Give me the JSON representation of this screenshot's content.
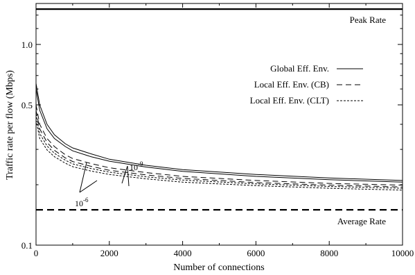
{
  "chart_data": {
    "type": "line",
    "title": "",
    "xlabel": "Number of connections",
    "ylabel": "Traffic rate per flow (Mbps)",
    "xlim": [
      0,
      10000
    ],
    "ylim": [
      0.1,
      1.6
    ],
    "yscale": "log",
    "grid": false,
    "legend_position": "upper-right",
    "x_ticks": [
      0,
      2000,
      4000,
      6000,
      8000,
      10000
    ],
    "x_tick_labels": [
      "0",
      "2000",
      "4000",
      "6000",
      "8000",
      "10000"
    ],
    "y_ticks": [
      0.1,
      0.5,
      1.0
    ],
    "y_tick_labels": [
      "0.1",
      "0.5",
      "1.0"
    ],
    "legend": [
      {
        "label": "Global Eff. Env.",
        "style": "solid"
      },
      {
        "label": "Local Eff. Env. (CB)",
        "style": "dashed"
      },
      {
        "label": "Local Eff. Env. (CLT)",
        "style": "dotted"
      }
    ],
    "reference_lines": [
      {
        "label": "Peak Rate",
        "y": 1.5,
        "style": "solid"
      },
      {
        "label": "Average Rate",
        "y": 0.15,
        "style": "dashed"
      }
    ],
    "annotations": [
      {
        "base": "10",
        "exponent": "-9"
      },
      {
        "base": "10",
        "exponent": "-6"
      }
    ],
    "series": [
      {
        "style": "solid",
        "x": [
          0,
          100,
          300,
          500,
          800,
          1000,
          1500,
          2000,
          3000,
          4000,
          6000,
          8000,
          10000
        ],
        "y": [
          0.64,
          0.5,
          0.4,
          0.355,
          0.32,
          0.305,
          0.285,
          0.268,
          0.25,
          0.238,
          0.225,
          0.216,
          0.21
        ]
      },
      {
        "style": "solid",
        "x": [
          0,
          100,
          300,
          500,
          800,
          1000,
          1500,
          2000,
          3000,
          4000,
          6000,
          8000,
          10000
        ],
        "y": [
          0.6,
          0.47,
          0.38,
          0.34,
          0.31,
          0.295,
          0.276,
          0.262,
          0.245,
          0.233,
          0.22,
          0.212,
          0.206
        ]
      },
      {
        "style": "dashed",
        "x": [
          0,
          100,
          300,
          500,
          800,
          1000,
          1500,
          2000,
          3000,
          4000,
          6000,
          8000,
          10000
        ],
        "y": [
          0.5,
          0.4,
          0.34,
          0.31,
          0.282,
          0.27,
          0.255,
          0.243,
          0.23,
          0.22,
          0.21,
          0.203,
          0.199
        ]
      },
      {
        "style": "dashed",
        "x": [
          0,
          100,
          300,
          500,
          800,
          1000,
          1500,
          2000,
          3000,
          4000,
          6000,
          8000,
          10000
        ],
        "y": [
          0.47,
          0.38,
          0.325,
          0.297,
          0.272,
          0.261,
          0.247,
          0.236,
          0.224,
          0.215,
          0.205,
          0.199,
          0.195
        ]
      },
      {
        "style": "dotted",
        "x": [
          0,
          100,
          300,
          500,
          800,
          1000,
          1500,
          2000,
          3000,
          4000,
          6000,
          8000,
          10000
        ],
        "y": [
          0.45,
          0.36,
          0.312,
          0.287,
          0.265,
          0.254,
          0.241,
          0.231,
          0.219,
          0.211,
          0.202,
          0.196,
          0.192
        ]
      },
      {
        "style": "dotted",
        "x": [
          0,
          100,
          300,
          500,
          800,
          1000,
          1500,
          2000,
          3000,
          4000,
          6000,
          8000,
          10000
        ],
        "y": [
          0.42,
          0.34,
          0.298,
          0.276,
          0.256,
          0.246,
          0.234,
          0.225,
          0.214,
          0.206,
          0.198,
          0.192,
          0.188
        ]
      }
    ]
  }
}
